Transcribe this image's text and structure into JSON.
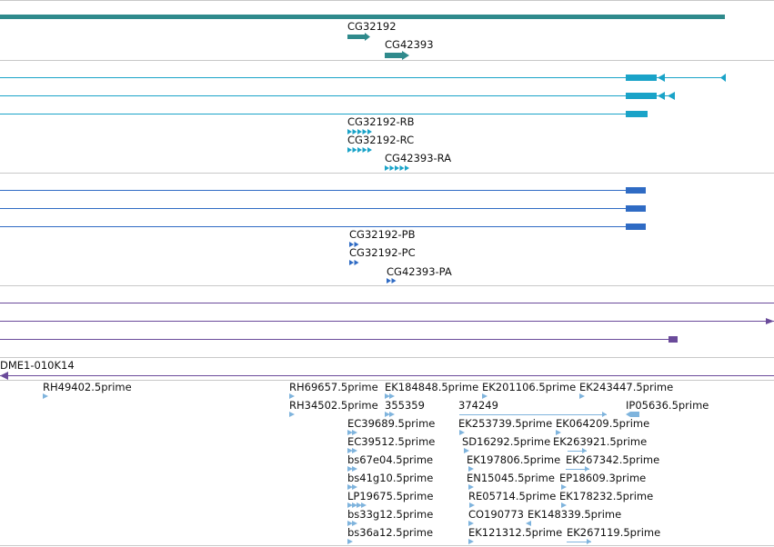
{
  "colors": {
    "gene": "#2f8a8c",
    "transcript": "#1aa3c8",
    "protein": "#2f6bc4",
    "purple": "#6a4a9a",
    "est": "#7fb4dd",
    "separator": "#c8c8c8"
  },
  "tracks": {
    "genes": {
      "labels": [
        "CG32192",
        "CG42393"
      ]
    },
    "transcripts": {
      "labels": [
        "CG32192-RB",
        "CG32192-RC",
        "CG42393-RA"
      ]
    },
    "proteins": {
      "labels": [
        "CG32192-PB",
        "CG32192-PC",
        "CG42393-PA"
      ]
    },
    "clone": {
      "label": "DME1-010K14"
    },
    "ests": {
      "labels": [
        "RH49402.5prime",
        "RH69657.5prime",
        "EK184848.5prime",
        "EK201106.5prime",
        "EK243447.5prime",
        "RH34502.5prime",
        "355359",
        "374249",
        "IP05636.5prime",
        "EC39689.5prime",
        "EK253739.5prime",
        "EK064209.5prime",
        "EC39512.5prime",
        "SD16292.5prime",
        "EK263921.5prime",
        "bs67e04.5prime",
        "EK197806.5prime",
        "EK267342.5prime",
        "bs41g10.5prime",
        "EN15045.5prime",
        "EP18609.3prime",
        "LP19675.5prime",
        "RE05714.5prime",
        "EK178232.5prime",
        "bs33g12.5prime",
        "CO190773",
        "EK148339.5prime",
        "bs36a12.5prime",
        "EK121312.5prime",
        "EK267119.5prime"
      ]
    }
  }
}
